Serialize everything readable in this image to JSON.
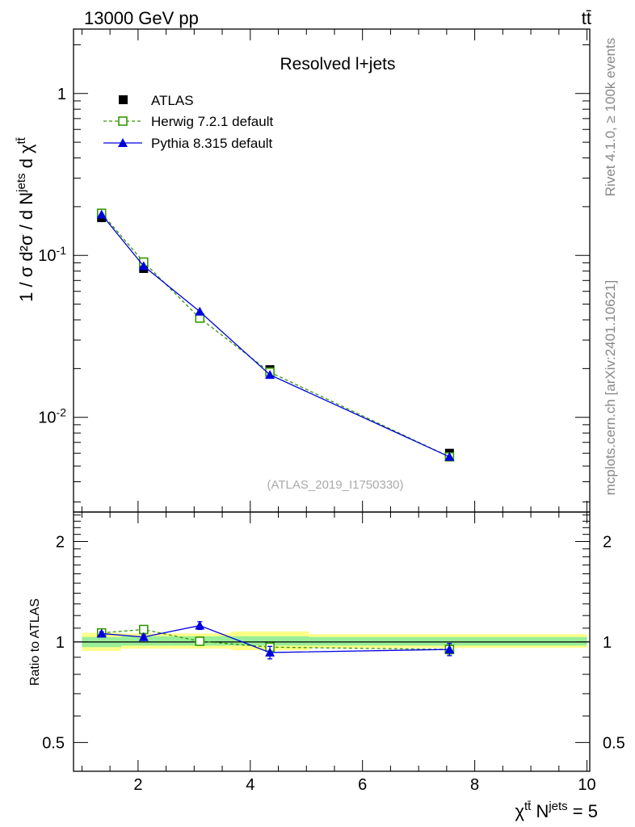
{
  "header": {
    "energy_label": "13000 GeV pp",
    "process_label": "tt̄",
    "side_label_top": "Rivet 4.1.0, ≥ 100k events",
    "side_label_bottom": "mcplots.cern.ch [arXiv:2401.10621]"
  },
  "chart_data": [
    {
      "type": "line",
      "panel": "main",
      "title": "Resolved l+jets",
      "watermark": "(ATLAS_2019_I1750330)",
      "ylabel": "1 / σ d²σ / d N^{jets} d χ^{tt̄}",
      "yscale": "log",
      "xlim": [
        0.85,
        10.05
      ],
      "ylim": [
        0.0026,
        2.5
      ],
      "y_ticks": [
        {
          "value": 1,
          "label": "1"
        },
        {
          "value": 0.1,
          "label": "10^{-1}"
        },
        {
          "value": 0.01,
          "label": "10^{-2}"
        }
      ],
      "series": [
        {
          "name": "ATLAS",
          "color": "#000000",
          "marker": "square-filled",
          "line": "none",
          "x": [
            1.35,
            2.1,
            3.1,
            4.35,
            7.55
          ],
          "y": [
            0.171,
            0.083,
            0.041,
            0.0197,
            0.006
          ]
        },
        {
          "name": "Herwig 7.2.1 default",
          "color": "#339900",
          "marker": "square-open",
          "line": "dashed",
          "x": [
            1.35,
            2.1,
            3.1,
            4.35,
            7.55
          ],
          "y": [
            0.182,
            0.091,
            0.041,
            0.019,
            0.0057
          ]
        },
        {
          "name": "Pythia 8.315 default",
          "color": "#0000dd",
          "marker": "triangle-filled",
          "line": "solid",
          "x": [
            1.35,
            2.1,
            3.1,
            4.35,
            7.55
          ],
          "y": [
            0.179,
            0.086,
            0.045,
            0.0183,
            0.0057
          ]
        }
      ]
    },
    {
      "type": "line",
      "panel": "ratio",
      "ylabel": "Ratio to ATLAS",
      "xlabel": "χ^{tt̄} N^{jets} = 5",
      "yscale": "log",
      "xlim": [
        0.85,
        10.05
      ],
      "ylim": [
        0.41,
        2.45
      ],
      "x_ticks": [
        2,
        4,
        6,
        8,
        10
      ],
      "y_ticks": [
        {
          "value": 2,
          "label": "2"
        },
        {
          "value": 1,
          "label": "1"
        },
        {
          "value": 0.5,
          "label": "0.5"
        }
      ],
      "uncertainty_bands": [
        {
          "x0": 1.0,
          "x1": 1.7,
          "stat": [
            0.965,
            1.035
          ],
          "total": [
            0.94,
            1.065
          ]
        },
        {
          "x0": 1.7,
          "x1": 2.55,
          "stat": [
            0.975,
            1.04
          ],
          "total": [
            0.955,
            1.06
          ]
        },
        {
          "x0": 2.55,
          "x1": 3.65,
          "stat": [
            0.975,
            1.04
          ],
          "total": [
            0.955,
            1.06
          ]
        },
        {
          "x0": 3.65,
          "x1": 5.05,
          "stat": [
            0.975,
            1.04
          ],
          "total": [
            0.945,
            1.075
          ]
        },
        {
          "x0": 5.05,
          "x1": 10.0,
          "stat": [
            0.975,
            1.035
          ],
          "total": [
            0.96,
            1.055
          ]
        }
      ],
      "series": [
        {
          "name": "Herwig 7.2.1 default",
          "color": "#339900",
          "marker": "square-open",
          "line": "dashed",
          "x": [
            1.35,
            2.1,
            3.1,
            4.35,
            7.55
          ],
          "y": [
            1.065,
            1.09,
            1.005,
            0.965,
            0.95
          ],
          "err": [
            0.012,
            0.012,
            0.025,
            0.03,
            0.03
          ]
        },
        {
          "name": "Pythia 8.315 default",
          "color": "#0000dd",
          "marker": "triangle-filled",
          "line": "solid",
          "x": [
            1.35,
            2.1,
            3.1,
            4.35,
            7.55
          ],
          "y": [
            1.06,
            1.035,
            1.12,
            0.93,
            0.95
          ],
          "err": [
            0.012,
            0.015,
            0.03,
            0.04,
            0.04
          ]
        }
      ]
    }
  ]
}
